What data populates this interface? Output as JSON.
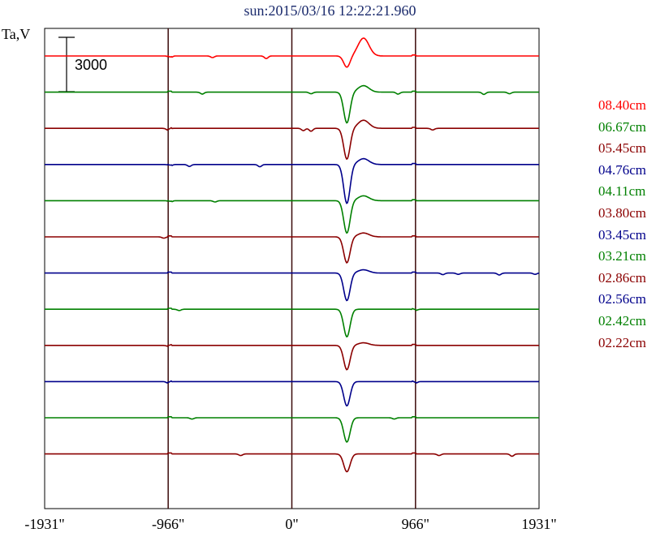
{
  "chart_data": {
    "type": "line",
    "title": "sun:2015/03/16 12:22:21.960",
    "ylabel": "Ta,V",
    "scale_bar_label": "3000",
    "xlim": [
      -1931,
      1931
    ],
    "x_tick_values": [
      -1931,
      -966,
      0,
      966,
      1931
    ],
    "x_tick_labels": [
      "-1931\"",
      "-966\"",
      "0\"",
      "966\"",
      "1931\""
    ],
    "vertical_lines_at": [
      -966,
      0,
      966
    ],
    "series": [
      {
        "name": "08.40cm",
        "color": "#ff0000",
        "dip": 0.35,
        "peak": 0.55,
        "noise": [
          [
            -950,
            0.06
          ],
          [
            -620,
            0.05
          ],
          [
            -200,
            0.08
          ]
        ]
      },
      {
        "name": "06.67cm",
        "color": "#008000",
        "dip": 0.95,
        "peak": 0.2,
        "noise": [
          [
            -700,
            0.06
          ],
          [
            150,
            0.05
          ],
          [
            830,
            0.06
          ],
          [
            1500,
            0.07
          ],
          [
            1700,
            0.05
          ]
        ]
      },
      {
        "name": "05.45cm",
        "color": "#8b0000",
        "dip": 0.95,
        "peak": 0.25,
        "noise": [
          [
            -966,
            0.06
          ],
          [
            90,
            0.07
          ],
          [
            150,
            0.09
          ],
          [
            1100,
            0.05
          ]
        ]
      },
      {
        "name": "04.76cm",
        "color": "#00008b",
        "dip": 1.2,
        "peak": 0.18,
        "noise": [
          [
            -950,
            0.05
          ],
          [
            -800,
            0.06
          ],
          [
            -250,
            0.07
          ]
        ]
      },
      {
        "name": "04.11cm",
        "color": "#008000",
        "dip": 1.0,
        "peak": 0.15,
        "noise": [
          [
            -950,
            0.05
          ],
          [
            -600,
            0.04
          ]
        ]
      },
      {
        "name": "03.80cm",
        "color": "#8b0000",
        "dip": 0.8,
        "peak": 0.12,
        "noise": [
          [
            -1000,
            0.04
          ]
        ]
      },
      {
        "name": "03.45cm",
        "color": "#00008b",
        "dip": 0.85,
        "peak": 0.1,
        "noise": [
          [
            1180,
            0.05
          ],
          [
            1300,
            0.04
          ],
          [
            1620,
            0.06
          ],
          [
            1900,
            0.04
          ]
        ]
      },
      {
        "name": "03.21cm",
        "color": "#008000",
        "dip": 0.85,
        "peak": 0.0,
        "noise": [
          [
            -880,
            0.04
          ],
          [
            966,
            0.04
          ]
        ]
      },
      {
        "name": "02.86cm",
        "color": "#8b0000",
        "dip": 0.75,
        "peak": 0.08,
        "noise": [
          [
            -966,
            0.03
          ]
        ]
      },
      {
        "name": "02.56cm",
        "color": "#00008b",
        "dip": 0.75,
        "peak": 0.0,
        "noise": [
          [
            -966,
            0.05
          ],
          [
            966,
            0.05
          ]
        ]
      },
      {
        "name": "02.42cm",
        "color": "#008000",
        "dip": 0.75,
        "peak": 0.0,
        "noise": [
          [
            -780,
            0.04
          ],
          [
            800,
            0.04
          ]
        ]
      },
      {
        "name": "02.22cm",
        "color": "#8b0000",
        "dip": 0.55,
        "peak": 0.0,
        "noise": [
          [
            -400,
            0.05
          ],
          [
            1150,
            0.05
          ],
          [
            1720,
            0.07
          ]
        ]
      }
    ]
  }
}
